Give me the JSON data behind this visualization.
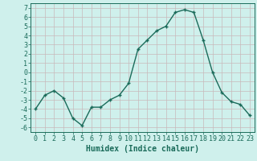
{
  "x": [
    0,
    1,
    2,
    3,
    4,
    5,
    6,
    7,
    8,
    9,
    10,
    11,
    12,
    13,
    14,
    15,
    16,
    17,
    18,
    19,
    20,
    21,
    22,
    23
  ],
  "y": [
    -4,
    -2.5,
    -2,
    -2.8,
    -5,
    -5.8,
    -3.8,
    -3.8,
    -3.0,
    -2.5,
    -1.2,
    2.5,
    3.5,
    4.5,
    5.0,
    6.5,
    6.8,
    6.5,
    3.5,
    0,
    -2.2,
    -3.2,
    -3.5,
    -4.7
  ],
  "line_color": "#1a6b5a",
  "marker": "+",
  "markersize": 3,
  "markeredgewidth": 1.0,
  "linewidth": 1.0,
  "xlabel": "Humidex (Indice chaleur)",
  "xlim": [
    -0.5,
    23.5
  ],
  "ylim": [
    -6.5,
    7.5
  ],
  "yticks": [
    -6,
    -5,
    -4,
    -3,
    -2,
    -1,
    0,
    1,
    2,
    3,
    4,
    5,
    6,
    7
  ],
  "xticks": [
    0,
    1,
    2,
    3,
    4,
    5,
    6,
    7,
    8,
    9,
    10,
    11,
    12,
    13,
    14,
    15,
    16,
    17,
    18,
    19,
    20,
    21,
    22,
    23
  ],
  "bg_color": "#cff0ec",
  "grid_color": "#c8b8bb",
  "tick_color": "#1a6b5a",
  "label_color": "#1a6b5a",
  "font_family": "monospace",
  "xlabel_fontsize": 7,
  "tick_fontsize": 6
}
